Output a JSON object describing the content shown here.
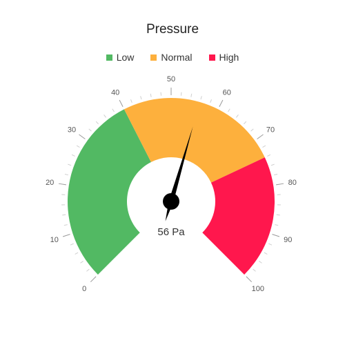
{
  "chart_data": {
    "type": "gauge",
    "title": "Pressure",
    "min": 0,
    "max": 100,
    "value": 56,
    "unit": "Pa",
    "value_label": "56 Pa",
    "ticks": [
      "0",
      "10",
      "20",
      "30",
      "40",
      "50",
      "60",
      "70",
      "80",
      "90",
      "100"
    ],
    "bands": [
      {
        "name": "Low",
        "from": 0,
        "to": 40,
        "color": "#52b963"
      },
      {
        "name": "Normal",
        "from": 40,
        "to": 74,
        "color": "#fdb03d"
      },
      {
        "name": "High",
        "from": 74,
        "to": 100,
        "color": "#ff174d"
      }
    ]
  }
}
